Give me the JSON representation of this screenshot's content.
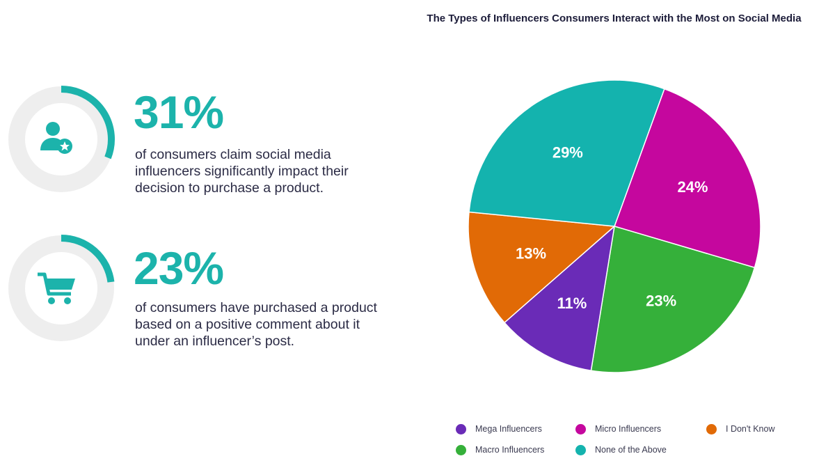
{
  "stats": [
    {
      "value": "31%",
      "percent": 31,
      "text": "of consumers claim social media influencers significantly impact their decision to purchase a product.",
      "icon": "person-star-icon"
    },
    {
      "value": "23%",
      "percent": 23,
      "text": "of consumers have purchased a product based on a positive comment about it under an influencer’s post.",
      "icon": "shopping-cart-icon"
    }
  ],
  "colors": {
    "teal": "#1cb3ab",
    "ring": "#eeeeee",
    "text": "#2b2b45"
  },
  "chart_data": {
    "type": "pie",
    "title": "The Types of Influencers Consumers Interact with the Most on Social Media",
    "slices": [
      {
        "label": "Micro Influencers",
        "value": 24,
        "display": "24%",
        "color": "#c5079e"
      },
      {
        "label": "Macro Influencers",
        "value": 23,
        "display": "23%",
        "color": "#35b03a"
      },
      {
        "label": "Mega Influencers",
        "value": 11,
        "display": "11%",
        "color": "#6a2bb7"
      },
      {
        "label": "I Don't Know",
        "value": 13,
        "display": "13%",
        "color": "#e16a06"
      },
      {
        "label": "None of the Above",
        "value": 29,
        "display": "29%",
        "color": "#14b3ae"
      }
    ],
    "legend": [
      {
        "label": "Mega Influencers",
        "color": "#6a2bb7"
      },
      {
        "label": "Micro Influencers",
        "color": "#c5079e"
      },
      {
        "label": "I Don't Know",
        "color": "#e16a06"
      },
      {
        "label": "Macro Influencers",
        "color": "#35b03a"
      },
      {
        "label": "None of the Above",
        "color": "#14b3ae"
      }
    ],
    "legend_position": "bottom"
  }
}
